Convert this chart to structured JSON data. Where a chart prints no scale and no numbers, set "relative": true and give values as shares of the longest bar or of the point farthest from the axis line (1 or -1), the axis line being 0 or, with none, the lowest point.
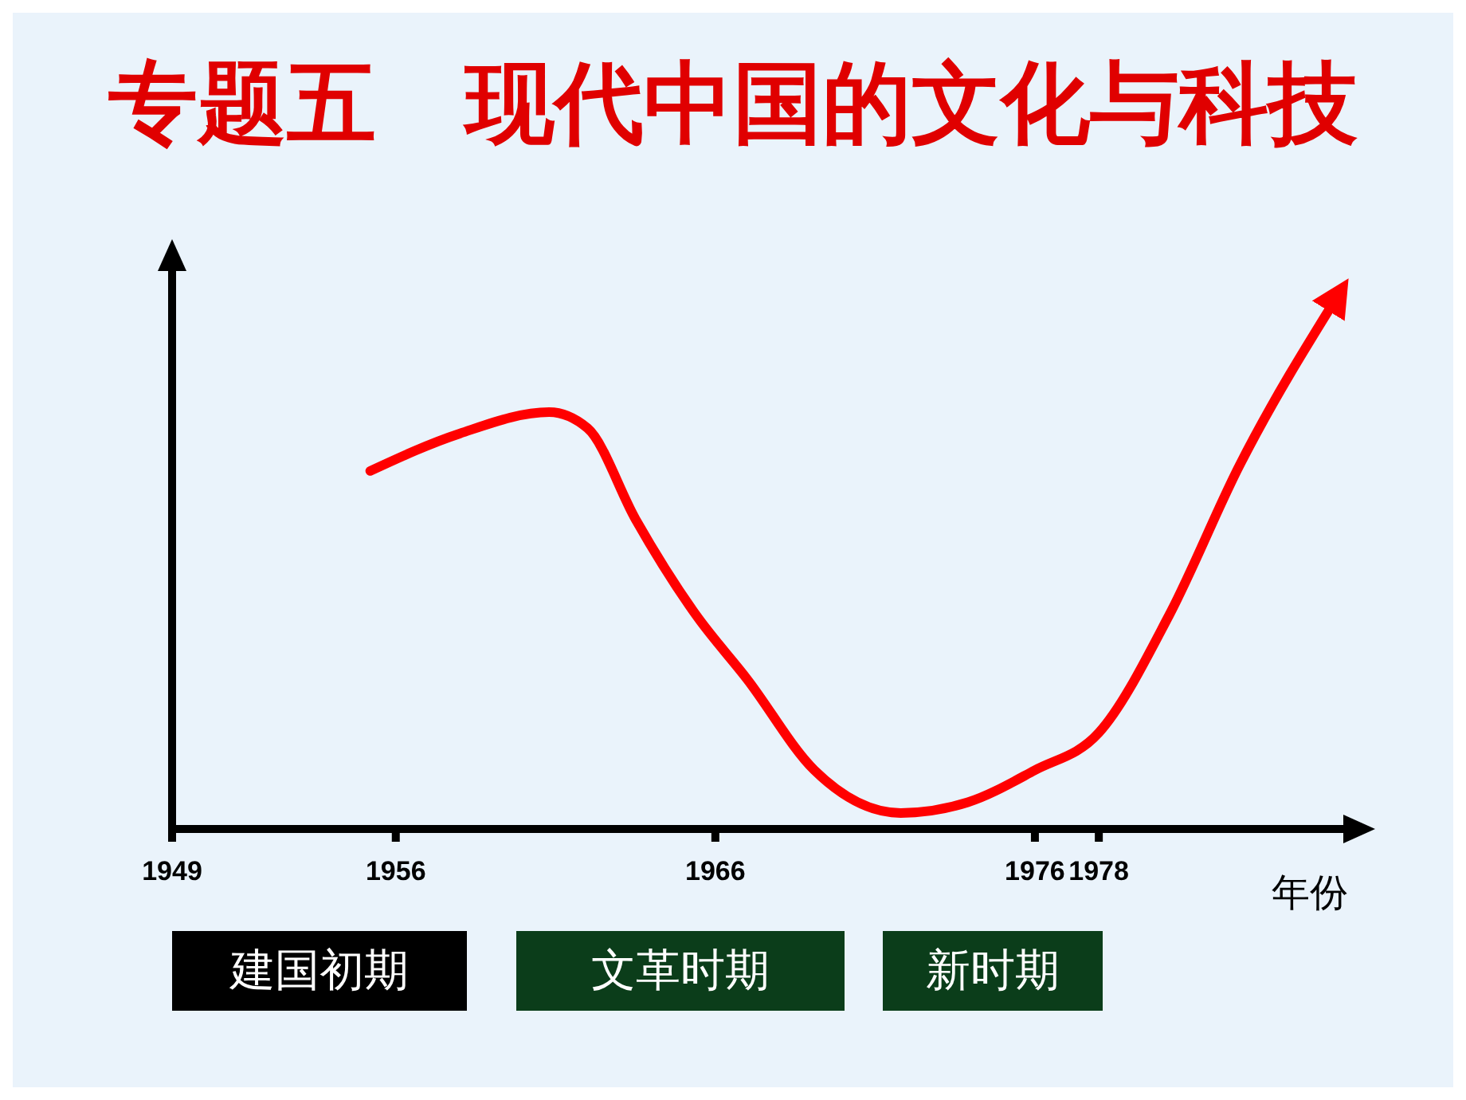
{
  "chart_data": {
    "type": "line",
    "title": "专题五　现代中国的文化与科技",
    "xlabel": "年份",
    "relative": true,
    "x": [
      1955.2,
      1958,
      1960.8,
      1962,
      1963.5,
      1965.4,
      1967,
      1969.1,
      1971.8,
      1973.9,
      1976,
      1978,
      1980.2,
      1982.4,
      1985.5
    ],
    "series": [
      {
        "color": "#ff0000",
        "values": [
          0.67,
          0.74,
          0.78,
          0.75,
          0.58,
          0.4,
          0.28,
          0.11,
          0.03,
          0.05,
          0.11,
          0.18,
          0.4,
          0.68,
          1
        ]
      }
    ],
    "xlim": [
      1949,
      1986
    ],
    "xticks": [
      1949,
      1956,
      1966,
      1976,
      1978
    ],
    "annotations": [
      "建国初期",
      "文革时期",
      "新时期"
    ],
    "grid": false,
    "legend": false,
    "marker": "none",
    "line_style": "solid"
  }
}
